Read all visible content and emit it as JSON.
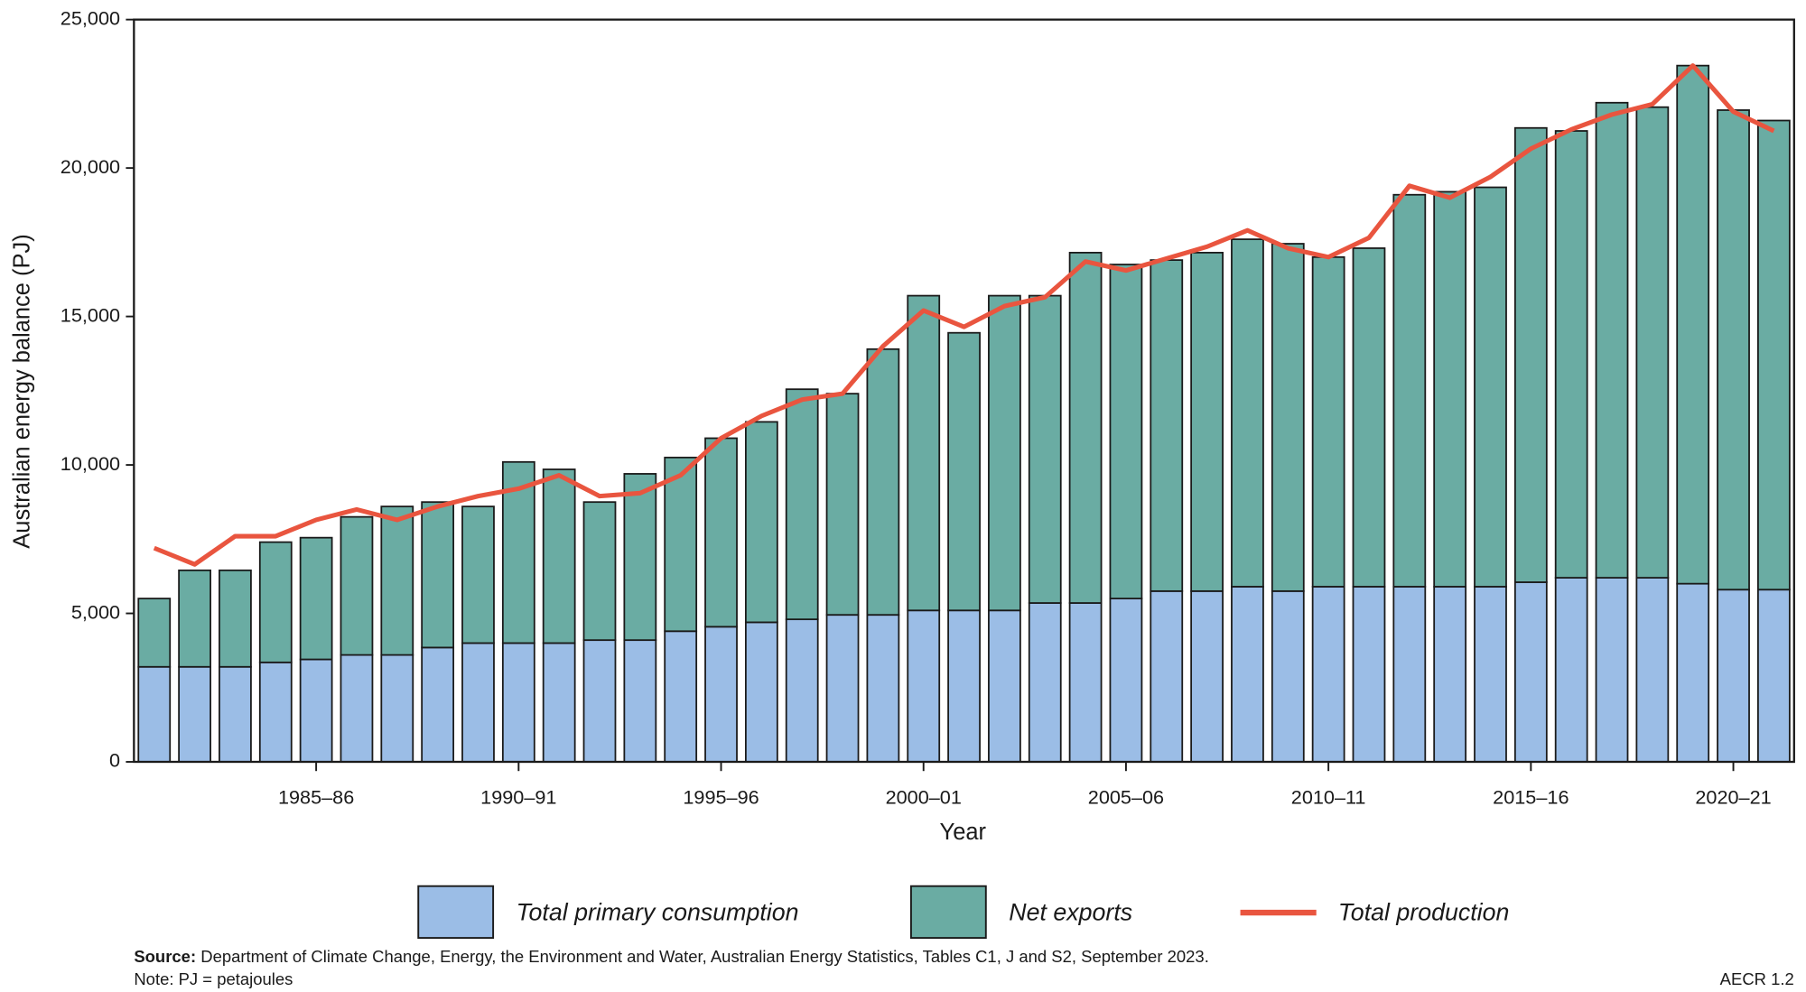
{
  "chart_data": {
    "type": "bar",
    "stacked": true,
    "x_label": "Year",
    "y_label": "Australian energy balance (PJ)",
    "categories": [
      null,
      null,
      null,
      null,
      "1985–86",
      null,
      null,
      null,
      null,
      "1990–91",
      null,
      null,
      null,
      null,
      "1995–96",
      null,
      null,
      null,
      null,
      "2000–01",
      null,
      null,
      null,
      null,
      "2005–06",
      null,
      null,
      null,
      null,
      "2010–11",
      null,
      null,
      null,
      null,
      "2015–16",
      null,
      null,
      null,
      null,
      "2020–21",
      null
    ],
    "series": [
      {
        "name": "Total primary consumption",
        "type": "bar",
        "color": "#9bbde6",
        "values": [
          3200,
          3200,
          3200,
          3350,
          3450,
          3600,
          3600,
          3850,
          4000,
          4000,
          4000,
          4100,
          4100,
          4400,
          4550,
          4700,
          4800,
          4950,
          4950,
          5100,
          5100,
          5100,
          5350,
          5350,
          5500,
          5750,
          5750,
          5900,
          5750,
          5900,
          5900,
          5900,
          5900,
          5900,
          6050,
          6200,
          6200,
          6200,
          6000,
          5800,
          5800
        ]
      },
      {
        "name": "Net exports",
        "type": "bar",
        "color": "#6aaca3",
        "values": [
          2300,
          3250,
          3250,
          4050,
          4100,
          4650,
          5000,
          4900,
          4600,
          6100,
          5850,
          4650,
          5600,
          5850,
          6350,
          6750,
          7750,
          7450,
          8950,
          10600,
          9350,
          10600,
          10350,
          11800,
          11250,
          11150,
          11400,
          11700,
          11700,
          11100,
          11400,
          13200,
          13300,
          13450,
          15300,
          15050,
          16000,
          15850,
          17450,
          16150,
          15800
        ]
      },
      {
        "name": "Total production",
        "type": "line",
        "color": "#e9553f",
        "values": [
          7200,
          6650,
          7600,
          7600,
          8150,
          8500,
          8150,
          8600,
          8950,
          9200,
          9650,
          8950,
          9050,
          9650,
          10900,
          11650,
          12200,
          12400,
          14000,
          15200,
          14650,
          15350,
          15650,
          16850,
          16550,
          16950,
          17350,
          17900,
          17300,
          17000,
          17650,
          19400,
          19000,
          19700,
          20650,
          21300,
          21800,
          22150,
          23450,
          21900,
          21250
        ]
      }
    ],
    "ylim": [
      0,
      25000
    ],
    "yticks": [
      0,
      {
        "value": 5000,
        "label": "5,000"
      },
      {
        "value": 10000,
        "label": "10,000"
      },
      {
        "value": 15000,
        "label": "15,000"
      },
      {
        "value": 20000,
        "label": "20,000"
      },
      {
        "value": 25000,
        "label": "25,000"
      }
    ],
    "grid": false,
    "source_label": "Source:",
    "source": "Department of Climate Change, Energy, the Environment and Water, Australian Energy Statistics, Tables C1, J and S2, September 2023.",
    "note": "Note: PJ = petajoules",
    "figure_id": "AECR 1.2"
  }
}
